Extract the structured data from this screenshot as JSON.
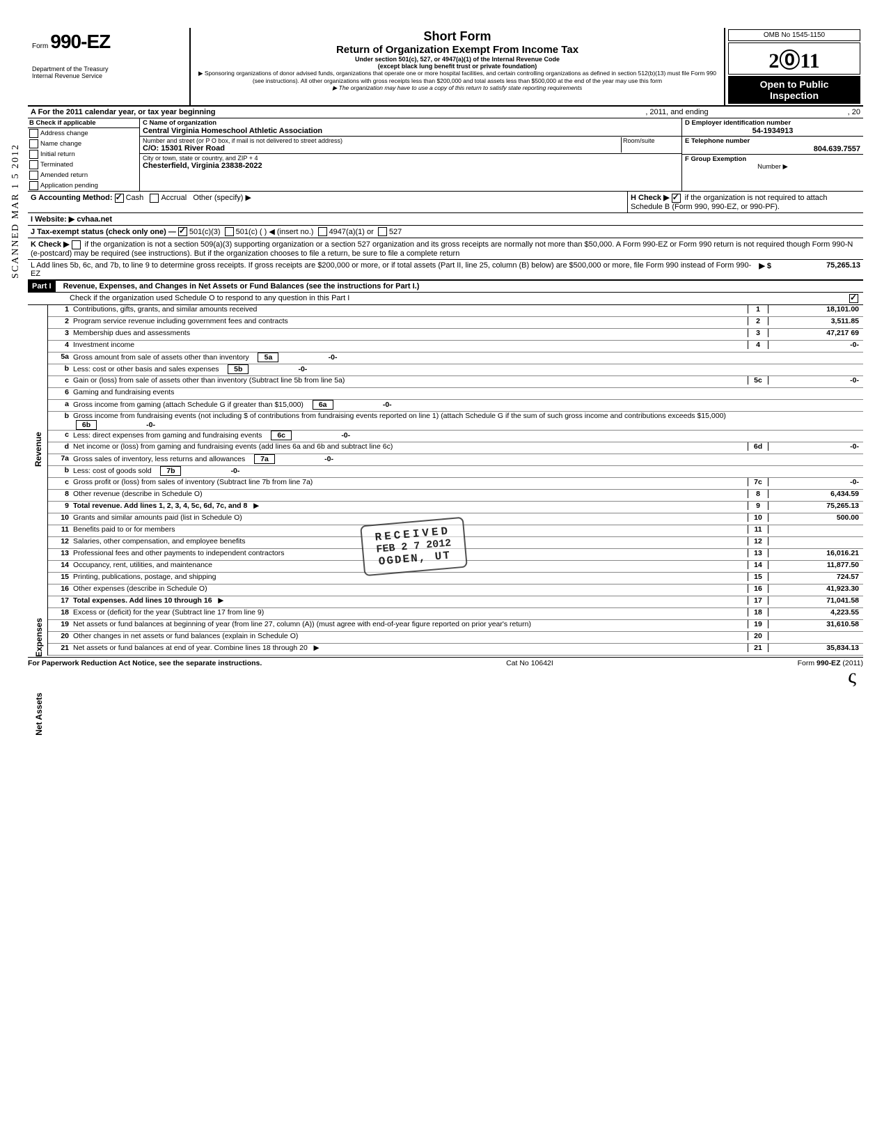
{
  "header": {
    "form_prefix": "Form",
    "form_number": "990-EZ",
    "dept1": "Department of the Treasury",
    "dept2": "Internal Revenue Service",
    "title1": "Short Form",
    "title2": "Return of Organization Exempt From Income Tax",
    "subtitle1": "Under section 501(c), 527, or 4947(a)(1) of the Internal Revenue Code",
    "subtitle2": "(except black lung benefit trust or private foundation)",
    "note1": "▶ Sponsoring organizations of donor advised funds, organizations that operate one or more hospital facilities, and certain controlling organizations as defined in section 512(b)(13) must file Form 990 (see instructions). All other organizations with gross receipts less than $200,000 and total assets less than $500,000 at the end of the year may use this form",
    "note2": "▶ The organization may have to use a copy of this return to satisfy state reporting requirements",
    "omb": "OMB No 1545-1150",
    "year": "2011",
    "open1": "Open to Public",
    "open2": "Inspection"
  },
  "sectionA": {
    "a_text": "A  For the 2011 calendar year, or tax year beginning",
    "a_mid": ", 2011, and ending",
    "a_end": ", 20",
    "b_label": "B  Check if applicable",
    "b_items": [
      "Address change",
      "Name change",
      "Initial return",
      "Terminated",
      "Amended return",
      "Application pending"
    ],
    "c_label": "C  Name of organization",
    "c_value": "Central Virginia Homeschool Athletic Association",
    "c_addr_label": "Number and street (or P O  box, if mail is not delivered to street address)",
    "c_addr": "C/O:  15301 River Road",
    "c_room": "Room/suite",
    "c_city_label": "City or town, state or country, and ZIP + 4",
    "c_city": "Chesterfield, Virginia  23838-2022",
    "d_label": "D Employer identification number",
    "d_value": "54-1934913",
    "e_label": "E  Telephone number",
    "e_value": "804.639.7557",
    "f_label": "F  Group Exemption",
    "f_sub": "Number ▶",
    "g_label": "G  Accounting Method:",
    "g_cash": "Cash",
    "g_accrual": "Accrual",
    "g_other": "Other (specify) ▶",
    "i_label": "I   Website: ▶",
    "i_value": "cvhaa.net",
    "j_label": "J  Tax-exempt status (check only one) —",
    "j_501c3": "501(c)(3)",
    "j_501c": "501(c) (        ) ◀ (insert no.)",
    "j_4947": "4947(a)(1) or",
    "j_527": "527",
    "h_label": "H  Check ▶",
    "h_text": "if the organization is not required to attach Schedule B (Form 990, 990-EZ, or 990-PF).",
    "k_label": "K  Check ▶",
    "k_text": "if the organization is not a section 509(a)(3) supporting organization or a section 527 organization and its gross receipts are normally not more than $50,000. A Form 990-EZ or Form 990 return is not required though Form 990-N (e-postcard) may be required (see instructions). But if the organization chooses to file a return, be sure to file a complete return",
    "l_label": "L  Add lines 5b, 6c, and 7b, to line 9 to determine gross receipts. If gross receipts are $200,000 or more, or if total assets (Part II, line 25, column (B) below) are $500,000 or more, file Form 990 instead of Form 990-EZ",
    "l_arrow": "▶  $",
    "l_value": "75,265.13"
  },
  "part1": {
    "header_label": "Part I",
    "header_text": "Revenue, Expenses, and Changes in Net Assets or Fund Balances (see the instructions for Part I.)",
    "sched_o": "Check if the organization used Schedule O to respond to any question in this Part I",
    "revenue_label": "Revenue",
    "expenses_label": "Expenses",
    "netassets_label": "Net Assets",
    "lines": [
      {
        "n": "1",
        "t": "Contributions, gifts, grants, and similar amounts received",
        "box": "1",
        "amt": "18,101.00"
      },
      {
        "n": "2",
        "t": "Program service revenue including government fees and contracts",
        "box": "2",
        "amt": "3,511.85"
      },
      {
        "n": "3",
        "t": "Membership dues and assessments",
        "box": "3",
        "amt": "47,217 69"
      },
      {
        "n": "4",
        "t": "Investment income",
        "box": "4",
        "amt": "-0-"
      },
      {
        "n": "5a",
        "t": "Gross amount from sale of assets other than inventory",
        "mid": "5a",
        "midamt": "-0-"
      },
      {
        "n": "b",
        "t": "Less: cost or other basis and sales expenses",
        "mid": "5b",
        "midamt": "-0-"
      },
      {
        "n": "c",
        "t": "Gain or (loss) from sale of assets other than inventory (Subtract line 5b from line 5a)",
        "box": "5c",
        "amt": "-0-"
      },
      {
        "n": "6",
        "t": "Gaming and fundraising events"
      },
      {
        "n": "a",
        "t": "Gross income from gaming (attach Schedule G if greater than $15,000)",
        "mid": "6a",
        "midamt": "-0-"
      },
      {
        "n": "b",
        "t": "Gross income from fundraising events (not including  $                       of contributions from fundraising events reported on line 1) (attach Schedule G if the sum of such gross income and contributions exceeds $15,000)",
        "mid": "6b",
        "midamt": "-0-"
      },
      {
        "n": "c",
        "t": "Less: direct expenses from gaming and fundraising events",
        "mid": "6c",
        "midamt": "-0-"
      },
      {
        "n": "d",
        "t": "Net income or (loss) from gaming and fundraising events (add lines 6a and 6b and subtract line 6c)",
        "box": "6d",
        "amt": "-0-"
      },
      {
        "n": "7a",
        "t": "Gross sales of inventory, less returns and allowances",
        "mid": "7a",
        "midamt": "-0-"
      },
      {
        "n": "b",
        "t": "Less: cost of goods sold",
        "mid": "7b",
        "midamt": "-0-"
      },
      {
        "n": "c",
        "t": "Gross profit or (loss) from sales of inventory (Subtract line 7b from line 7a)",
        "box": "7c",
        "amt": "-0-"
      },
      {
        "n": "8",
        "t": "Other revenue (describe in Schedule O)",
        "box": "8",
        "amt": "6,434.59"
      },
      {
        "n": "9",
        "t": "Total revenue. Add lines 1, 2, 3, 4, 5c, 6d, 7c, and 8",
        "box": "9",
        "amt": "75,265.13",
        "arrow": "▶",
        "bold": true
      },
      {
        "n": "10",
        "t": "Grants and similar amounts paid (list in Schedule O)",
        "box": "10",
        "amt": "500.00"
      },
      {
        "n": "11",
        "t": "Benefits paid to or for members",
        "box": "11",
        "amt": ""
      },
      {
        "n": "12",
        "t": "Salaries, other compensation, and employee benefits",
        "box": "12",
        "amt": ""
      },
      {
        "n": "13",
        "t": "Professional fees and other payments to independent contractors",
        "box": "13",
        "amt": "16,016.21"
      },
      {
        "n": "14",
        "t": "Occupancy, rent, utilities, and maintenance",
        "box": "14",
        "amt": "11,877.50"
      },
      {
        "n": "15",
        "t": "Printing, publications, postage, and shipping",
        "box": "15",
        "amt": "724.57"
      },
      {
        "n": "16",
        "t": "Other expenses (describe in Schedule O)",
        "box": "16",
        "amt": "41,923.30"
      },
      {
        "n": "17",
        "t": "Total expenses. Add lines 10 through 16",
        "box": "17",
        "amt": "71,041.58",
        "arrow": "▶",
        "bold": true
      },
      {
        "n": "18",
        "t": "Excess or (deficit) for the year (Subtract line 17 from line 9)",
        "box": "18",
        "amt": "4,223.55"
      },
      {
        "n": "19",
        "t": "Net assets or fund balances at beginning of year (from line 27, column (A)) (must agree with end-of-year figure reported on prior year's return)",
        "box": "19",
        "amt": "31,610.58"
      },
      {
        "n": "20",
        "t": "Other changes in net assets or fund balances (explain in Schedule O)",
        "box": "20",
        "amt": ""
      },
      {
        "n": "21",
        "t": "Net assets or fund balances at end of year. Combine lines 18 through 20",
        "box": "21",
        "amt": "35,834.13",
        "arrow": "▶"
      }
    ]
  },
  "stamp": {
    "line1": "RECEIVED",
    "line2": "FEB 2 7 2012",
    "line3": "OGDEN, UT"
  },
  "scanned": "SCANNED MAR 1 5 2012",
  "footer": {
    "left": "For Paperwork Reduction Act Notice, see the separate instructions.",
    "center": "Cat  No  10642I",
    "right": "Form 990-EZ (2011)"
  }
}
